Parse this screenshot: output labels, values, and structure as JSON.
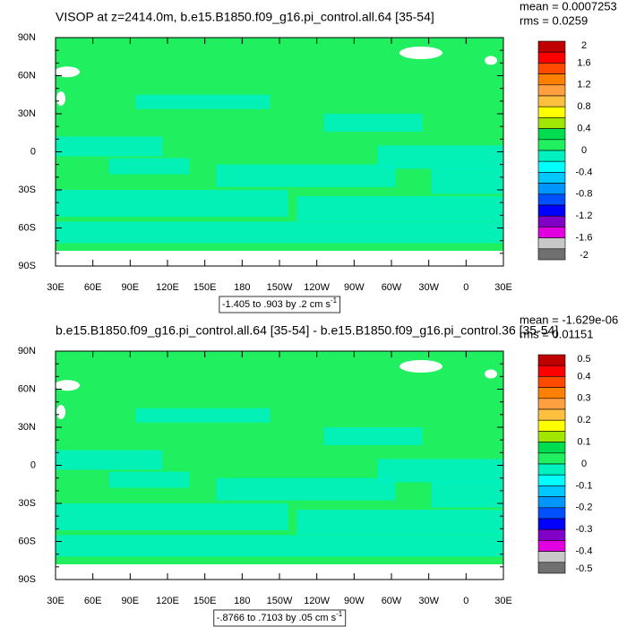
{
  "panels": [
    {
      "title": "VISOP at z=2414.0m, b.e15.B1850.f09_g16.pi_control.all.64 [35-54]",
      "mean": "mean = 0.0007253",
      "rms": "rms = 0.0259",
      "lat_labels": [
        "90N",
        "60N",
        "30N",
        "0",
        "30S",
        "60S",
        "90S"
      ],
      "lon_labels": [
        "30E",
        "60E",
        "90E",
        "120E",
        "150E",
        "180",
        "150W",
        "120W",
        "90W",
        "60W",
        "30W",
        "0",
        "30E"
      ],
      "colorbar": {
        "labels": [
          "2",
          "1.6",
          "1.2",
          "0.8",
          "0.4",
          "0",
          "-0.4",
          "-0.8",
          "-1.2",
          "-1.6",
          "-2"
        ],
        "colors": [
          "#c00000",
          "#ff0000",
          "#ff4a00",
          "#ff8000",
          "#ffa040",
          "#ffc040",
          "#ffff00",
          "#a0e600",
          "#00dc50",
          "#20f060",
          "#00f0c0",
          "#00ffff",
          "#00c8ff",
          "#0096ff",
          "#0050ff",
          "#0000ff",
          "#8000c8",
          "#e000e0",
          "#c8c8c8",
          "#707070"
        ]
      },
      "note": {
        "text": "-1.405 to .903 by .2 cm s",
        "superscript": "-1"
      }
    },
    {
      "title": "b.e15.B1850.f09_g16.pi_control.all.64 [35-54] - b.e15.B1850.f09_g16.pi_control.36 [35-54]",
      "mean": "mean = -1.629e-06",
      "rms": "rms = 0.01151",
      "lat_labels": [
        "90N",
        "60N",
        "30N",
        "0",
        "30S",
        "60S",
        "90S"
      ],
      "lon_labels": [
        "30E",
        "60E",
        "90E",
        "120E",
        "150E",
        "180",
        "150W",
        "120W",
        "90W",
        "60W",
        "30W",
        "0",
        "30E"
      ],
      "colorbar": {
        "labels": [
          "0.5",
          "0.4",
          "0.3",
          "0.2",
          "0.1",
          "0",
          "-0.1",
          "-0.2",
          "-0.3",
          "-0.4",
          "-0.5"
        ],
        "colors": [
          "#c00000",
          "#ff0000",
          "#ff4a00",
          "#ff8000",
          "#ffa040",
          "#ffc040",
          "#ffff00",
          "#a0e600",
          "#00dc50",
          "#20f060",
          "#00f0c0",
          "#00ffff",
          "#00c8ff",
          "#0096ff",
          "#0050ff",
          "#0000ff",
          "#8000c8",
          "#e000e0",
          "#c8c8c8",
          "#707070"
        ]
      },
      "note": {
        "text": "-.8766 to .7103 by .05 cm s",
        "superscript": "-1"
      }
    }
  ]
}
